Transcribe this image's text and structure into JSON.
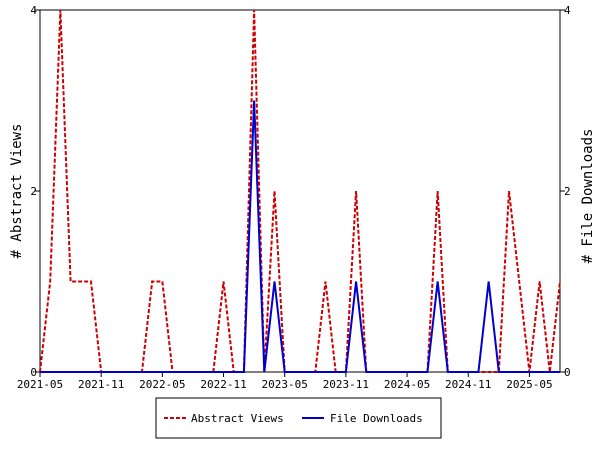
{
  "chart_data": {
    "type": "line",
    "x": [
      "2021-05",
      "2021-06",
      "2021-07",
      "2021-08",
      "2021-09",
      "2021-10",
      "2021-11",
      "2021-12",
      "2022-01",
      "2022-02",
      "2022-03",
      "2022-04",
      "2022-05",
      "2022-06",
      "2022-07",
      "2022-08",
      "2022-09",
      "2022-10",
      "2022-11",
      "2022-12",
      "2023-01",
      "2023-02",
      "2023-03",
      "2023-04",
      "2023-05",
      "2023-06",
      "2023-07",
      "2023-08",
      "2023-09",
      "2023-10",
      "2023-11",
      "2023-12",
      "2024-01",
      "2024-02",
      "2024-03",
      "2024-04",
      "2024-05",
      "2024-06",
      "2024-07",
      "2024-08",
      "2024-09",
      "2024-10",
      "2024-11",
      "2024-12",
      "2025-01",
      "2025-02",
      "2025-03",
      "2025-04",
      "2025-05",
      "2025-06",
      "2025-07",
      "2025-08"
    ],
    "x_ticks": [
      "2021-05",
      "2021-11",
      "2022-05",
      "2022-11",
      "2023-05",
      "2023-11",
      "2024-05",
      "2024-11",
      "2025-05"
    ],
    "series": [
      {
        "name": "Abstract Views",
        "color": "#cc0000",
        "style": "dashed",
        "axis": "left",
        "values": [
          0,
          1,
          4,
          1,
          1,
          1,
          0,
          0,
          0,
          0,
          0,
          1,
          1,
          0,
          0,
          0,
          0,
          0,
          1,
          0,
          0,
          4,
          0,
          2,
          0,
          0,
          0,
          0,
          1,
          0,
          0,
          2,
          0,
          0,
          0,
          0,
          0,
          0,
          0,
          2,
          0,
          0,
          0,
          0,
          0,
          0,
          2,
          1,
          0,
          1,
          0,
          1
        ]
      },
      {
        "name": "File Downloads",
        "color": "#0000cc",
        "style": "solid",
        "axis": "right",
        "values": [
          0,
          0,
          0,
          0,
          0,
          0,
          0,
          0,
          0,
          0,
          0,
          0,
          0,
          0,
          0,
          0,
          0,
          0,
          0,
          0,
          0,
          3,
          0,
          1,
          0,
          0,
          0,
          0,
          0,
          0,
          0,
          1,
          0,
          0,
          0,
          0,
          0,
          0,
          0,
          1,
          0,
          0,
          0,
          0,
          1,
          0,
          0,
          0,
          0,
          0,
          0,
          0
        ]
      }
    ],
    "ylabel": "# Abstract Views",
    "y2label": "# File Downloads",
    "ylim": [
      0,
      4
    ],
    "y2lim": [
      0,
      4
    ],
    "y_ticks": [
      0,
      2,
      4
    ],
    "y2_ticks": [
      0,
      2,
      4
    ],
    "grid": false,
    "legend": "bottom-center"
  }
}
